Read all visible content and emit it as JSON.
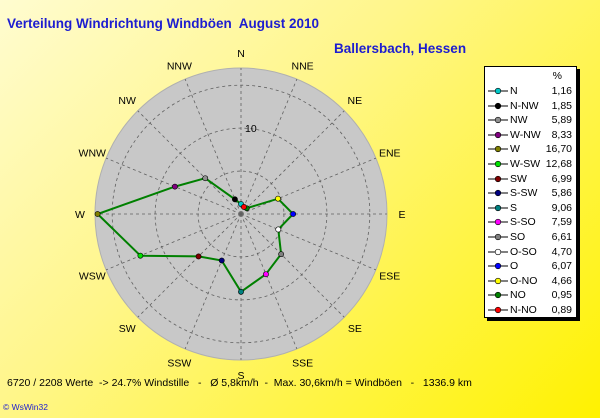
{
  "header": {
    "title": "Verteilung Windrichtung Windböen  August 2010",
    "location": "Ballersbach, Hessen"
  },
  "footer": {
    "stats": "6720 / 2208 Werte  -> 24.7% Windstille   -   Ø 5,8km/h  -  Max. 30,6km/h = Windböen   -   1336.9 km",
    "credit": "© WsWin32"
  },
  "legend": {
    "unit_label": "%"
  },
  "chart_data": {
    "type": "radar",
    "title": "Verteilung Windrichtung Windböen  August 2010",
    "subtitle": "Ballersbach, Hessen",
    "unit": "%",
    "r_max": 17,
    "ring_values": [
      5,
      10,
      15
    ],
    "ring_label": "10",
    "line_color": "#008000",
    "background": "#c8c8c8",
    "grid": true,
    "legend_position": "right",
    "compass_labels": [
      "N",
      "NNE",
      "NE",
      "ENE",
      "E",
      "ESE",
      "SE",
      "SSE",
      "S",
      "SSW",
      "SW",
      "WSW",
      "W",
      "WNW",
      "NW",
      "NNW"
    ],
    "series": [
      {
        "name": "N",
        "value": 1.16,
        "angle": 0,
        "color": "#00c8c8"
      },
      {
        "name": "N-NW",
        "value": 1.85,
        "angle": 337.5,
        "color": "#000000"
      },
      {
        "name": "NW",
        "value": 5.89,
        "angle": 315,
        "color": "#909090"
      },
      {
        "name": "W-NW",
        "value": 8.33,
        "angle": 292.5,
        "color": "#800080"
      },
      {
        "name": "W",
        "value": 16.7,
        "angle": 270,
        "color": "#808000"
      },
      {
        "name": "W-SW",
        "value": 12.68,
        "angle": 247.5,
        "color": "#00e000"
      },
      {
        "name": "SW",
        "value": 6.99,
        "angle": 225,
        "color": "#800000"
      },
      {
        "name": "S-SW",
        "value": 5.86,
        "angle": 202.5,
        "color": "#000080"
      },
      {
        "name": "S",
        "value": 9.06,
        "angle": 180,
        "color": "#008080"
      },
      {
        "name": "S-SO",
        "value": 7.59,
        "angle": 157.5,
        "color": "#ff00ff"
      },
      {
        "name": "SO",
        "value": 6.61,
        "angle": 135,
        "color": "#808080"
      },
      {
        "name": "O-SO",
        "value": 4.7,
        "angle": 112.5,
        "color": "#ffffff"
      },
      {
        "name": "O",
        "value": 6.07,
        "angle": 90,
        "color": "#0000ff"
      },
      {
        "name": "O-NO",
        "value": 4.66,
        "angle": 67.5,
        "color": "#ffff00"
      },
      {
        "name": "NO",
        "value": 0.95,
        "angle": 45,
        "color": "#008000"
      },
      {
        "name": "N-NO",
        "value": 0.89,
        "angle": 22.5,
        "color": "#ff0000"
      }
    ]
  }
}
